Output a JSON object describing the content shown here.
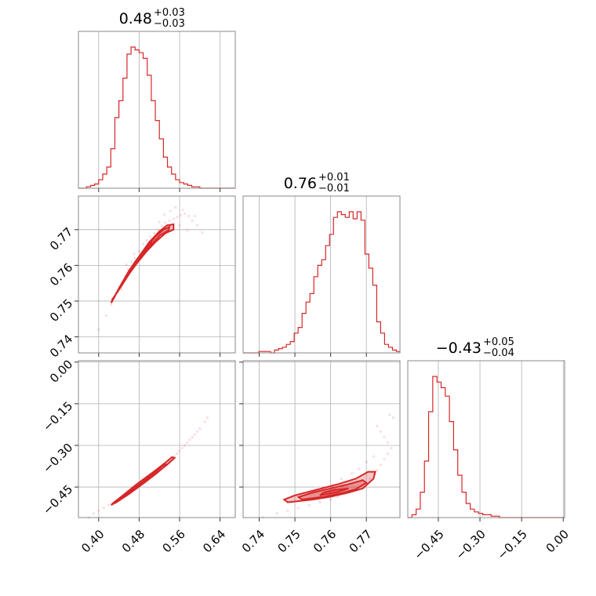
{
  "chart_data": {
    "type": "corner",
    "color": "#d62728",
    "parameters": [
      {
        "title": {
          "main": "0.48",
          "upper": "+0.03",
          "lower": "−0.03"
        },
        "range": [
          0.36,
          0.67
        ],
        "ticks": [
          0.4,
          0.48,
          0.56,
          0.64
        ],
        "tick_labels": [
          "0.40",
          "0.48",
          "0.56",
          "0.64"
        ],
        "median": 0.48,
        "err_plus": 0.03,
        "err_minus": 0.03
      },
      {
        "title": {
          "main": "0.76",
          "upper": "+0.01",
          "lower": "−0.01"
        },
        "range": [
          0.7355,
          0.7794
        ],
        "ticks": [
          0.74,
          0.75,
          0.76,
          0.77
        ],
        "tick_labels": [
          "0.74",
          "0.75",
          "0.76",
          "0.77"
        ],
        "median": 0.763,
        "err_plus": 0.01,
        "err_minus": 0.01
      },
      {
        "title": {
          "main": "−0.43",
          "upper": "+0.05",
          "lower": "−0.04"
        },
        "range": [
          -0.56,
          0.005
        ],
        "ticks": [
          -0.45,
          -0.3,
          -0.15,
          0.0
        ],
        "tick_labels": [
          "−0.45",
          "−0.30",
          "−0.15",
          "0.00"
        ],
        "median": -0.43,
        "err_plus": 0.05,
        "err_minus": 0.04
      }
    ],
    "histograms": [
      {
        "param": 0,
        "bin_edges": [
          0.36,
          0.368,
          0.376,
          0.384,
          0.392,
          0.4,
          0.408,
          0.416,
          0.424,
          0.432,
          0.44,
          0.448,
          0.456,
          0.464,
          0.472,
          0.48,
          0.488,
          0.496,
          0.504,
          0.512,
          0.52,
          0.528,
          0.536,
          0.544,
          0.552,
          0.56,
          0.568,
          0.576,
          0.584,
          0.592,
          0.6,
          0.608,
          0.616,
          0.624,
          0.632,
          0.64,
          0.648,
          0.656,
          0.664,
          0.67
        ],
        "counts": [
          0,
          0,
          1,
          2,
          3,
          6,
          10,
          15,
          28,
          50,
          62,
          78,
          95,
          100,
          98,
          96,
          92,
          80,
          62,
          48,
          35,
          22,
          15,
          10,
          6,
          4,
          3,
          2,
          1,
          1,
          0,
          0,
          0,
          0,
          0,
          0,
          0,
          0,
          0
        ]
      },
      {
        "param": 1,
        "bin_edges": [
          0.7355,
          0.7366,
          0.7377,
          0.7388,
          0.7399,
          0.741,
          0.7421,
          0.7432,
          0.7443,
          0.7454,
          0.7465,
          0.7476,
          0.7487,
          0.7498,
          0.7509,
          0.752,
          0.7531,
          0.7542,
          0.7553,
          0.7564,
          0.7575,
          0.7586,
          0.7597,
          0.7608,
          0.7619,
          0.763,
          0.7641,
          0.7652,
          0.7663,
          0.7674,
          0.7685,
          0.7696,
          0.7707,
          0.7718,
          0.7729,
          0.774,
          0.7751,
          0.7762,
          0.7773,
          0.7784,
          0.7794
        ],
        "counts": [
          0,
          0,
          0,
          0,
          1,
          1,
          1,
          0,
          2,
          3,
          4,
          6,
          8,
          14,
          18,
          28,
          36,
          42,
          54,
          62,
          66,
          76,
          84,
          96,
          100,
          98,
          96,
          100,
          95,
          100,
          94,
          70,
          60,
          48,
          22,
          14,
          6,
          4,
          2,
          1
        ]
      },
      {
        "param": 2,
        "bin_edges": [
          -0.56,
          -0.545,
          -0.53,
          -0.515,
          -0.5,
          -0.485,
          -0.47,
          -0.455,
          -0.44,
          -0.425,
          -0.41,
          -0.395,
          -0.38,
          -0.365,
          -0.35,
          -0.335,
          -0.32,
          -0.305,
          -0.29,
          -0.275,
          -0.26,
          -0.245,
          -0.23,
          -0.215,
          -0.2,
          -0.185,
          -0.17,
          -0.155,
          -0.14,
          -0.125,
          -0.11,
          -0.095,
          -0.08,
          -0.065,
          -0.05,
          -0.035,
          -0.02,
          -0.005,
          0.005
        ],
        "counts": [
          0,
          2,
          6,
          18,
          40,
          75,
          100,
          96,
          92,
          86,
          68,
          48,
          30,
          18,
          10,
          6,
          4,
          3,
          2,
          2,
          1,
          1,
          0,
          0,
          0,
          0,
          0,
          0,
          0,
          0,
          0,
          0,
          0,
          0,
          0,
          0,
          0,
          0
        ]
      }
    ],
    "scatter_panels": [
      {
        "x_param": 0,
        "y_param": 1,
        "type": "scatter",
        "points": [
          [
            0.4,
            0.742
          ],
          [
            0.415,
            0.746
          ],
          [
            0.425,
            0.749
          ],
          [
            0.432,
            0.751
          ],
          [
            0.44,
            0.754
          ],
          [
            0.445,
            0.755
          ],
          [
            0.452,
            0.757
          ],
          [
            0.458,
            0.759
          ],
          [
            0.465,
            0.761
          ],
          [
            0.472,
            0.762
          ],
          [
            0.48,
            0.764
          ],
          [
            0.488,
            0.766
          ],
          [
            0.495,
            0.767
          ],
          [
            0.502,
            0.768
          ],
          [
            0.51,
            0.769
          ],
          [
            0.518,
            0.77
          ],
          [
            0.525,
            0.771
          ],
          [
            0.532,
            0.772
          ],
          [
            0.54,
            0.7725
          ],
          [
            0.548,
            0.773
          ],
          [
            0.555,
            0.7735
          ],
          [
            0.562,
            0.774
          ],
          [
            0.57,
            0.7745
          ],
          [
            0.578,
            0.7738
          ],
          [
            0.585,
            0.7725
          ],
          [
            0.595,
            0.7712
          ],
          [
            0.605,
            0.7692
          ],
          [
            0.542,
            0.7752
          ],
          [
            0.552,
            0.7762
          ],
          [
            0.566,
            0.7755
          ],
          [
            0.538,
            0.7702
          ],
          [
            0.515,
            0.7672
          ],
          [
            0.47,
            0.7632
          ],
          [
            0.455,
            0.7602
          ],
          [
            0.445,
            0.7532
          ],
          [
            0.52,
            0.7722
          ],
          [
            0.53,
            0.7742
          ],
          [
            0.56,
            0.7712
          ],
          [
            0.575,
            0.7698
          ],
          [
            0.59,
            0.7738
          ]
        ]
      },
      {
        "x_param": 0,
        "y_param": 2,
        "type": "scatter",
        "points": [
          [
            0.38,
            -0.56
          ],
          [
            0.39,
            -0.545
          ],
          [
            0.4,
            -0.535
          ],
          [
            0.41,
            -0.525
          ],
          [
            0.42,
            -0.515
          ],
          [
            0.43,
            -0.505
          ],
          [
            0.44,
            -0.495
          ],
          [
            0.45,
            -0.48
          ],
          [
            0.46,
            -0.47
          ],
          [
            0.47,
            -0.455
          ],
          [
            0.48,
            -0.44
          ],
          [
            0.49,
            -0.425
          ],
          [
            0.5,
            -0.41
          ],
          [
            0.51,
            -0.395
          ],
          [
            0.52,
            -0.385
          ],
          [
            0.53,
            -0.37
          ],
          [
            0.54,
            -0.355
          ],
          [
            0.55,
            -0.34
          ],
          [
            0.56,
            -0.32
          ],
          [
            0.57,
            -0.3
          ],
          [
            0.58,
            -0.28
          ],
          [
            0.59,
            -0.26
          ],
          [
            0.6,
            -0.24
          ],
          [
            0.61,
            -0.215
          ],
          [
            0.615,
            -0.2
          ],
          [
            0.545,
            -0.345
          ],
          [
            0.555,
            -0.33
          ],
          [
            0.565,
            -0.31
          ],
          [
            0.575,
            -0.29
          ],
          [
            0.585,
            -0.27
          ],
          [
            0.595,
            -0.25
          ]
        ]
      },
      {
        "x_param": 1,
        "y_param": 2,
        "type": "scatter",
        "points": [
          [
            0.741,
            -0.56
          ],
          [
            0.745,
            -0.545
          ],
          [
            0.748,
            -0.535
          ],
          [
            0.751,
            -0.525
          ],
          [
            0.754,
            -0.515
          ],
          [
            0.757,
            -0.505
          ],
          [
            0.76,
            -0.495
          ],
          [
            0.762,
            -0.485
          ],
          [
            0.764,
            -0.475
          ],
          [
            0.766,
            -0.465
          ],
          [
            0.768,
            -0.455
          ],
          [
            0.769,
            -0.445
          ],
          [
            0.77,
            -0.435
          ],
          [
            0.771,
            -0.42
          ],
          [
            0.772,
            -0.405
          ],
          [
            0.773,
            -0.39
          ],
          [
            0.774,
            -0.37
          ],
          [
            0.775,
            -0.35
          ],
          [
            0.776,
            -0.33
          ],
          [
            0.777,
            -0.31
          ],
          [
            0.776,
            -0.29
          ],
          [
            0.775,
            -0.27
          ],
          [
            0.774,
            -0.25
          ],
          [
            0.773,
            -0.23
          ],
          [
            0.7775,
            -0.2
          ],
          [
            0.7765,
            -0.19
          ],
          [
            0.772,
            -0.34
          ],
          [
            0.77,
            -0.36
          ],
          [
            0.768,
            -0.385
          ],
          [
            0.766,
            -0.4
          ],
          [
            0.763,
            -0.42
          ],
          [
            0.758,
            -0.45
          ]
        ]
      }
    ],
    "contour_panels": [
      {
        "x_param": 0,
        "y_param": 1,
        "levels": [
          [
            [
              0.425,
              0.7495
            ],
            [
              0.44,
              0.7535
            ],
            [
              0.46,
              0.7585
            ],
            [
              0.48,
              0.7625
            ],
            [
              0.5,
              0.7665
            ],
            [
              0.52,
              0.7695
            ],
            [
              0.535,
              0.7712
            ],
            [
              0.548,
              0.7715
            ],
            [
              0.548,
              0.77
            ],
            [
              0.532,
              0.769
            ],
            [
              0.512,
              0.7665
            ],
            [
              0.492,
              0.7635
            ],
            [
              0.472,
              0.76
            ],
            [
              0.452,
              0.756
            ],
            [
              0.437,
              0.7525
            ],
            [
              0.427,
              0.7505
            ]
          ],
          [
            [
              0.432,
              0.7515
            ],
            [
              0.452,
              0.7565
            ],
            [
              0.472,
              0.761
            ],
            [
              0.492,
              0.7645
            ],
            [
              0.512,
              0.768
            ],
            [
              0.528,
              0.77
            ],
            [
              0.54,
              0.7708
            ],
            [
              0.538,
              0.7698
            ],
            [
              0.522,
              0.7685
            ],
            [
              0.502,
              0.7655
            ],
            [
              0.482,
              0.762
            ],
            [
              0.462,
              0.758
            ],
            [
              0.444,
              0.754
            ],
            [
              0.433,
              0.7518
            ]
          ],
          [
            [
              0.455,
              0.757
            ],
            [
              0.475,
              0.7615
            ],
            [
              0.495,
              0.765
            ],
            [
              0.505,
              0.7665
            ],
            [
              0.495,
              0.764
            ],
            [
              0.475,
              0.7605
            ],
            [
              0.458,
              0.7572
            ]
          ]
        ]
      },
      {
        "x_param": 0,
        "y_param": 2,
        "levels": [
          [
            [
              0.425,
              -0.515
            ],
            [
              0.45,
              -0.485
            ],
            [
              0.48,
              -0.445
            ],
            [
              0.51,
              -0.405
            ],
            [
              0.535,
              -0.37
            ],
            [
              0.55,
              -0.345
            ],
            [
              0.545,
              -0.342
            ],
            [
              0.53,
              -0.365
            ],
            [
              0.505,
              -0.4
            ],
            [
              0.475,
              -0.44
            ],
            [
              0.448,
              -0.48
            ],
            [
              0.427,
              -0.51
            ]
          ],
          [
            [
              0.435,
              -0.505
            ],
            [
              0.46,
              -0.475
            ],
            [
              0.49,
              -0.435
            ],
            [
              0.515,
              -0.4
            ],
            [
              0.535,
              -0.368
            ],
            [
              0.528,
              -0.37
            ],
            [
              0.508,
              -0.402
            ],
            [
              0.482,
              -0.438
            ],
            [
              0.455,
              -0.473
            ],
            [
              0.436,
              -0.5
            ]
          ]
        ]
      },
      {
        "x_param": 1,
        "y_param": 2,
        "levels": [
          [
            [
              0.748,
              -0.505
            ],
            [
              0.755,
              -0.495
            ],
            [
              0.76,
              -0.485
            ],
            [
              0.765,
              -0.47
            ],
            [
              0.769,
              -0.455
            ],
            [
              0.772,
              -0.42
            ],
            [
              0.7725,
              -0.395
            ],
            [
              0.7705,
              -0.395
            ],
            [
              0.767,
              -0.42
            ],
            [
              0.762,
              -0.44
            ],
            [
              0.756,
              -0.46
            ],
            [
              0.75,
              -0.48
            ],
            [
              0.747,
              -0.495
            ]
          ],
          [
            [
              0.752,
              -0.495
            ],
            [
              0.758,
              -0.485
            ],
            [
              0.763,
              -0.472
            ],
            [
              0.767,
              -0.458
            ],
            [
              0.77,
              -0.435
            ],
            [
              0.769,
              -0.425
            ],
            [
              0.765,
              -0.44
            ],
            [
              0.76,
              -0.455
            ],
            [
              0.755,
              -0.47
            ],
            [
              0.751,
              -0.486
            ]
          ],
          [
            [
              0.757,
              -0.48
            ],
            [
              0.762,
              -0.468
            ],
            [
              0.765,
              -0.455
            ],
            [
              0.761,
              -0.46
            ],
            [
              0.758,
              -0.47
            ]
          ]
        ]
      }
    ],
    "grid": true
  }
}
